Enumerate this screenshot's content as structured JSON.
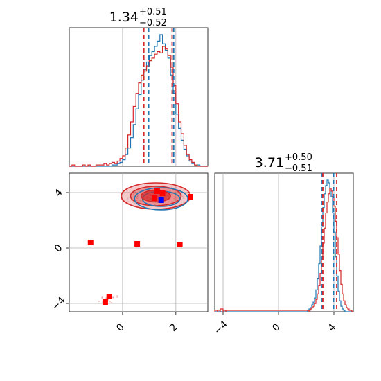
{
  "chart_data": {
    "type": "corner",
    "colors": {
      "series_a": "#1f77b4",
      "series_b": "#d62728",
      "marker_a": "#0000ff",
      "marker_b": "#ff0000",
      "grid": "#b0b0b0"
    },
    "params": [
      {
        "median": "1.34",
        "plus": "+0.51",
        "minus": "−0.52",
        "range": [
          -2,
          3.2
        ],
        "ticks": [
          0,
          2
        ],
        "tick_labels": [
          "0",
          "2"
        ]
      },
      {
        "median": "3.71",
        "plus": "+0.50",
        "minus": "−0.51",
        "range": [
          -4.6,
          5.4
        ],
        "ticks": [
          -4,
          0,
          4
        ],
        "tick_labels": [
          "−4",
          "0",
          "4"
        ]
      }
    ],
    "grid": true,
    "panels": {
      "hist_param1": {
        "series_a": {
          "quantiles": [
            0.98,
            1.92
          ],
          "x": [
            -1.0,
            -0.9,
            -0.8,
            -0.7,
            -0.6,
            -0.5,
            -0.4,
            -0.3,
            -0.2,
            -0.1,
            0.0,
            0.1,
            0.2,
            0.3,
            0.4,
            0.5,
            0.6,
            0.7,
            0.8,
            0.9,
            1.0,
            1.1,
            1.2,
            1.3,
            1.4,
            1.5,
            1.6,
            1.7,
            1.8,
            1.9,
            2.0,
            2.1,
            2.2,
            2.3,
            2.4,
            2.5,
            2.6,
            2.7,
            2.8,
            2.9,
            3.0
          ],
          "counts": [
            0,
            0,
            0,
            0,
            0,
            0,
            1,
            1,
            2,
            3,
            5,
            9,
            14,
            22,
            32,
            44,
            55,
            66,
            74,
            80,
            85,
            88,
            92,
            96,
            101,
            94,
            89,
            83,
            70,
            56,
            40,
            29,
            20,
            13,
            8,
            4,
            2,
            1,
            1,
            0,
            0
          ]
        },
        "series_b": {
          "quantiles": [
            0.8,
            1.86
          ],
          "x": [
            -1.9,
            -1.8,
            -1.7,
            -1.6,
            -1.5,
            -1.4,
            -1.3,
            -1.2,
            -1.1,
            -1.0,
            -0.9,
            -0.8,
            -0.7,
            -0.6,
            -0.5,
            -0.4,
            -0.3,
            -0.2,
            -0.1,
            0.0,
            0.1,
            0.2,
            0.3,
            0.4,
            0.5,
            0.6,
            0.7,
            0.8,
            0.9,
            1.0,
            1.1,
            1.2,
            1.3,
            1.4,
            1.5,
            1.6,
            1.7,
            1.8,
            1.9,
            2.0,
            2.1,
            2.2,
            2.3,
            2.4,
            2.5,
            2.6,
            2.7,
            2.8,
            2.9
          ],
          "counts": [
            1,
            0,
            0,
            0,
            1,
            0,
            1,
            0,
            0,
            1,
            1,
            1,
            2,
            1,
            2,
            3,
            2,
            4,
            6,
            8,
            14,
            24,
            34,
            46,
            56,
            64,
            70,
            73,
            77,
            81,
            83,
            86,
            88,
            87,
            92,
            90,
            85,
            76,
            62,
            48,
            34,
            25,
            16,
            9,
            5,
            3,
            1,
            0,
            0
          ]
        }
      },
      "hist_param2": {
        "series_a": {
          "quantiles": [
            3.15,
            3.98
          ],
          "x": [
            2.1,
            2.2,
            2.3,
            2.4,
            2.5,
            2.6,
            2.7,
            2.8,
            2.9,
            3.0,
            3.1,
            3.2,
            3.3,
            3.4,
            3.5,
            3.6,
            3.7,
            3.8,
            3.9,
            4.0,
            4.1,
            4.2,
            4.3,
            4.4,
            4.5,
            4.6,
            4.7,
            4.8
          ],
          "counts": [
            1,
            2,
            3,
            5,
            7,
            10,
            16,
            24,
            35,
            48,
            62,
            76,
            86,
            92,
            96,
            94,
            90,
            84,
            72,
            58,
            40,
            26,
            15,
            8,
            4,
            2,
            1,
            0
          ]
        },
        "series_b": {
          "quantiles": [
            3.2,
            4.2
          ],
          "x": [
            -4.6,
            -4.4,
            -4.2,
            -4.0,
            -3.8,
            2.2,
            2.3,
            2.4,
            2.5,
            2.6,
            2.7,
            2.8,
            2.9,
            3.0,
            3.1,
            3.2,
            3.3,
            3.4,
            3.5,
            3.6,
            3.7,
            3.8,
            3.9,
            4.0,
            4.1,
            4.2,
            4.3,
            4.4,
            4.5,
            4.6,
            4.7,
            4.8,
            4.9,
            5.0,
            5.1,
            5.2,
            5.3
          ],
          "counts": [
            1,
            1,
            2,
            1,
            1,
            1,
            2,
            3,
            4,
            6,
            9,
            13,
            19,
            28,
            38,
            50,
            61,
            72,
            80,
            86,
            90,
            88,
            84,
            77,
            66,
            54,
            42,
            30,
            20,
            13,
            8,
            5,
            3,
            2,
            1,
            1,
            0
          ]
        }
      },
      "joint": {
        "series_a_center": [
          1.45,
          3.55
        ],
        "series_b_center": [
          1.25,
          3.75
        ],
        "series_a_marker": [
          1.45,
          3.45
        ],
        "series_b_outliers": [
          [
            -1.2,
            0.4
          ],
          [
            0.55,
            0.3
          ],
          [
            2.15,
            0.25
          ],
          [
            -0.5,
            -3.5
          ],
          [
            -0.65,
            -3.9
          ],
          [
            1.3,
            4.1
          ],
          [
            1.5,
            3.95
          ],
          [
            1.2,
            3.6
          ],
          [
            2.55,
            3.7
          ]
        ]
      }
    }
  }
}
